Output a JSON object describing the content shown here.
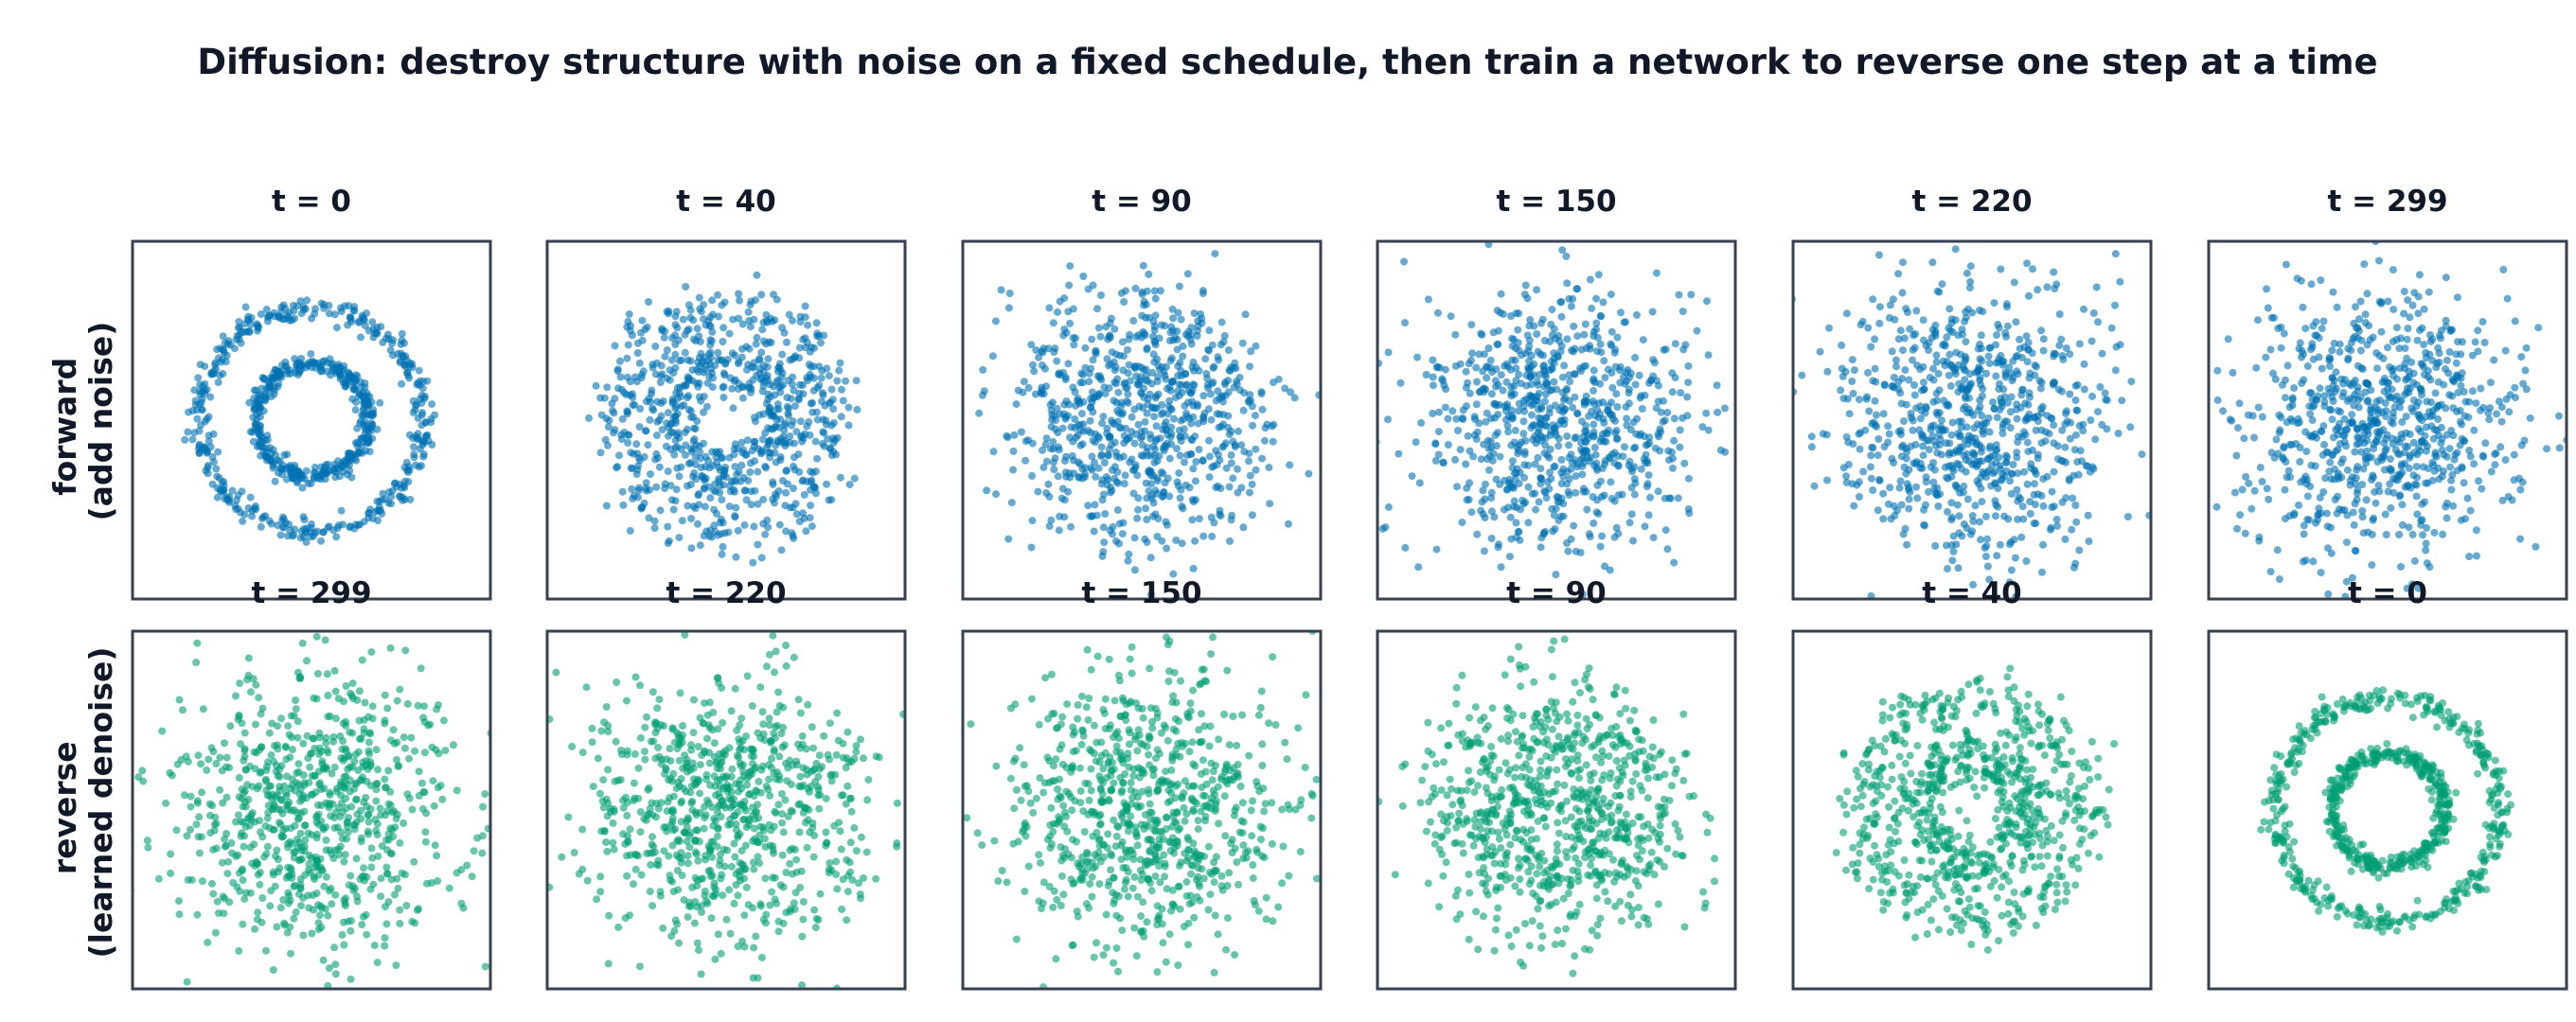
{
  "chart_data": {
    "type": "scatter",
    "title": "Diffusion: destroy structure with noise on a fixed schedule, then train a network to reverse one step at a time",
    "rows": [
      {
        "label": [
          "forward",
          "(add noise)"
        ],
        "color": "#0072b2",
        "panels": [
          {
            "title": "t = 0",
            "t": 0
          },
          {
            "title": "t = 40",
            "t": 40
          },
          {
            "title": "t = 90",
            "t": 90
          },
          {
            "title": "t = 150",
            "t": 150
          },
          {
            "title": "t = 220",
            "t": 220
          },
          {
            "title": "t = 299",
            "t": 299
          }
        ]
      },
      {
        "label": [
          "reverse",
          "(learned denoise)"
        ],
        "color": "#009e73",
        "panels": [
          {
            "title": "t = 299",
            "t": 299
          },
          {
            "title": "t = 220",
            "t": 220
          },
          {
            "title": "t = 150",
            "t": 150
          },
          {
            "title": "t = 90",
            "t": 90
          },
          {
            "title": "t = 40",
            "t": 40
          },
          {
            "title": "t = 0",
            "t": 0
          }
        ]
      }
    ],
    "points_per_panel": 800,
    "data_shape": "two concentric rings at t = 0, near-isotropic Gaussian noise as t grows",
    "ring_radii": [
      0.5,
      1.0
    ],
    "xlim": [
      -1.6,
      1.6
    ],
    "ylim": [
      -1.6,
      1.6
    ],
    "point_opacity": 0.6,
    "axes_ticks": false,
    "grid": false,
    "legend": false
  }
}
